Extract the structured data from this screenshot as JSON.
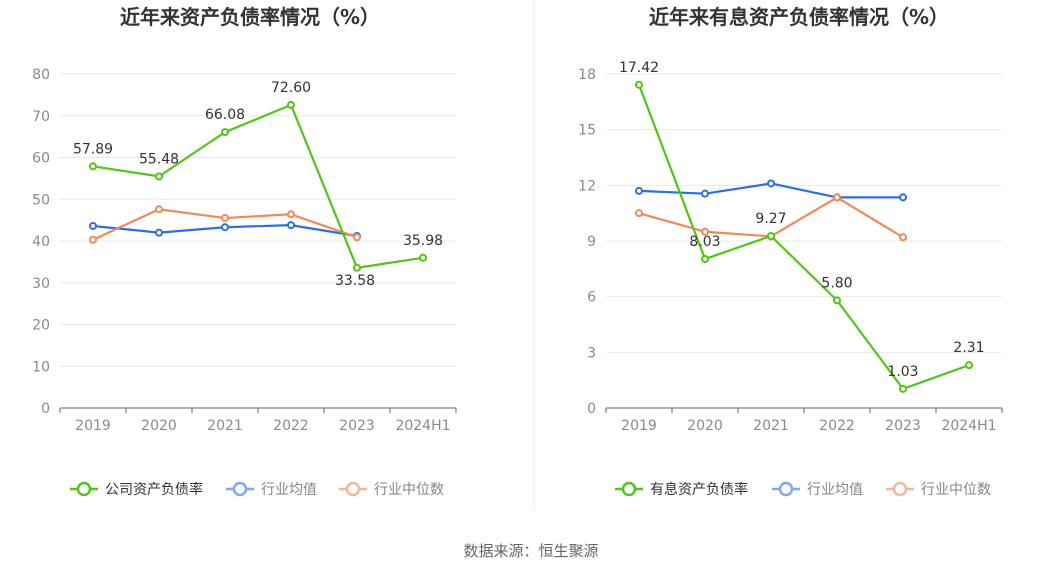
{
  "source": "数据来源：恒生聚源",
  "chart_data": [
    {
      "type": "line",
      "title": "近年来资产负债率情况（%）",
      "categories": [
        "2019",
        "2020",
        "2021",
        "2022",
        "2023",
        "2024H1"
      ],
      "ylim": [
        0,
        80
      ],
      "yticks": [
        0,
        10,
        20,
        30,
        40,
        50,
        60,
        70,
        80
      ],
      "grid": true,
      "legend_position": "bottom",
      "series": [
        {
          "name": "公司资产负债率",
          "color": "#52c41a",
          "labeled": true,
          "values": [
            57.89,
            55.48,
            66.08,
            72.6,
            33.58,
            35.98
          ],
          "labels": [
            "57.89",
            "55.48",
            "66.08",
            "72.60",
            "33.58",
            "35.98"
          ]
        },
        {
          "name": "行业均值",
          "color": "#2f6fdb",
          "labeled": false,
          "values": [
            43.6,
            42.0,
            43.3,
            43.8,
            41.2,
            null
          ]
        },
        {
          "name": "行业中位数",
          "color": "#f0885a",
          "labeled": false,
          "values": [
            40.3,
            47.6,
            45.5,
            46.4,
            40.9,
            null
          ]
        }
      ]
    },
    {
      "type": "line",
      "title": "近年来有息资产负债率情况（%）",
      "categories": [
        "2019",
        "2020",
        "2021",
        "2022",
        "2023",
        "2024H1"
      ],
      "ylim": [
        0,
        18
      ],
      "yticks": [
        0,
        3,
        6,
        9,
        12,
        15,
        18
      ],
      "grid": true,
      "legend_position": "bottom",
      "series": [
        {
          "name": "有息资产负债率",
          "color": "#52c41a",
          "labeled": true,
          "values": [
            17.42,
            8.03,
            9.27,
            5.8,
            1.03,
            2.31
          ],
          "labels": [
            "17.42",
            "8.03",
            "9.27",
            "5.80",
            "1.03",
            "2.31"
          ]
        },
        {
          "name": "行业均值",
          "color": "#2f6fdb",
          "labeled": false,
          "values": [
            11.7,
            11.55,
            12.1,
            11.35,
            11.35,
            null
          ]
        },
        {
          "name": "行业中位数",
          "color": "#f0885a",
          "labeled": false,
          "values": [
            10.5,
            9.5,
            9.25,
            11.35,
            9.2,
            null
          ]
        }
      ]
    }
  ]
}
